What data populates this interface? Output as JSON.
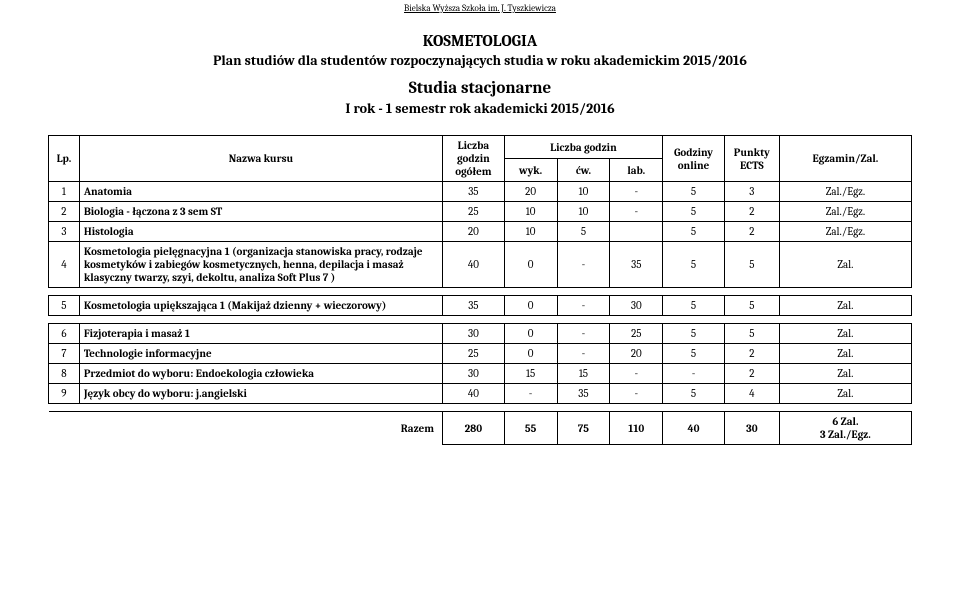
{
  "header_top": "Bielska Wyższa Szkoła im. J. Tyszkiewicza",
  "title1": "KOSMETOLOGIA",
  "title2": "Plan studiów dla studentów rozpoczynających studia w roku akademickim 2015/2016",
  "title3": "Studia stacjonarne",
  "title4": "I rok - 1 semestr    rok akademicki 2015/2016",
  "headers": {
    "lp": "Lp.",
    "name": "Nazwa kursu",
    "ogolem_top": "Liczba godzin ogółem",
    "godzin_top": "Liczba godzin",
    "wyk": "wyk.",
    "cw": "ćw.",
    "lab": "lab.",
    "online": "Godziny online",
    "ects": "Punkty ECTS",
    "egz": "Egzamin/Zal."
  },
  "rows": [
    {
      "lp": "1",
      "name": "Anatomia",
      "og": "35",
      "wyk": "20",
      "cw": "10",
      "lab": "-",
      "onl": "5",
      "ects": "3",
      "egz": "Zal./Egz."
    },
    {
      "lp": "2",
      "name": "Biologia - łączona z 3 sem ST",
      "og": "25",
      "wyk": "10",
      "cw": "10",
      "lab": "-",
      "onl": "5",
      "ects": "2",
      "egz": "Zal./Egz."
    },
    {
      "lp": "3",
      "name": "Histologia",
      "og": "20",
      "wyk": "10",
      "cw": "5",
      "lab": "",
      "onl": "5",
      "ects": "2",
      "egz": "Zal./Egz."
    },
    {
      "lp": "4",
      "name": "Kosmetologia pielęgnacyjna 1 (organizacja stanowiska pracy, rodzaje kosmetyków i zabiegów kosmetycznych, henna, depilacja i masaż klasyczny twarzy, szyi, dekoltu, analiza Soft Plus 7  )",
      "og": "40",
      "wyk": "0",
      "cw": "-",
      "lab": "35",
      "onl": "5",
      "ects": "5",
      "egz": "Zal."
    }
  ],
  "row5": {
    "lp": "5",
    "name": "Kosmetologia upiększająca 1 (Makijaż dzienny + wieczorowy)",
    "og": "35",
    "wyk": "0",
    "cw": "-",
    "lab": "30",
    "onl": "5",
    "ects": "5",
    "egz": "Zal."
  },
  "rows2": [
    {
      "lp": "6",
      "name": "Fizjoterapia i masaż 1",
      "og": "30",
      "wyk": "0",
      "cw": "-",
      "lab": "25",
      "onl": "5",
      "ects": "5",
      "egz": "Zal."
    },
    {
      "lp": "7",
      "name": "Technologie informacyjne",
      "og": "25",
      "wyk": "0",
      "cw": "-",
      "lab": "20",
      "onl": "5",
      "ects": "2",
      "egz": "Zal."
    },
    {
      "lp": "8",
      "name": "Przedmiot do wyboru: Endoekologia człowieka",
      "og": "30",
      "wyk": "15",
      "cw": "15",
      "lab": "-",
      "onl": "-",
      "ects": "2",
      "egz": "Zal."
    },
    {
      "lp": "9",
      "name": "Język obcy do wyboru: j.angielski",
      "og": "40",
      "wyk": "-",
      "cw": "35",
      "lab": "-",
      "onl": "5",
      "ects": "4",
      "egz": "Zal."
    }
  ],
  "razem": {
    "label": "Razem",
    "og": "280",
    "wyk": "55",
    "cw": "75",
    "lab": "110",
    "onl": "40",
    "ects": "30",
    "egz": "6 Zal.\n3 Zal./Egz."
  },
  "style": {
    "page_bg": "#ffffff",
    "text_color": "#000000",
    "border_color": "#000000",
    "font_family": "Cambria, Georgia, serif",
    "header_top_fontsize": 9,
    "title_fontsize_large": 17,
    "title_fontsize_med": 14,
    "table_fontsize": 11
  }
}
